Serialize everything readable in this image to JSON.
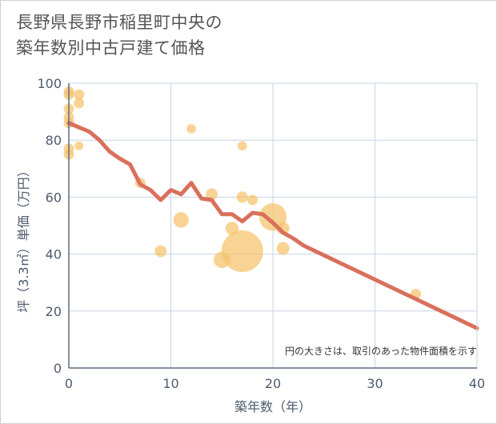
{
  "title_lines": [
    "長野県長野市稲里町中央の",
    "築年数別中古戸建て価格"
  ],
  "chart_data": {
    "type": "scatter",
    "title": "長野県長野市稲里町中央の築年数別中古戸建て価格",
    "xlabel": "築年数（年）",
    "ylabel": "坪（3.3㎡）単価（万円）",
    "xlim": [
      0,
      40
    ],
    "ylim": [
      0,
      100
    ],
    "xticks": [
      "0",
      "10",
      "20",
      "30",
      "40"
    ],
    "yticks": [
      "0",
      "20",
      "40",
      "60",
      "80",
      "100"
    ],
    "grid": true,
    "note": "円の大きさは、取引のあった物件面積を示す",
    "colors": {
      "bubble": "#f5c26b",
      "line": "#d9705c",
      "grid": "#c9d4e3",
      "axis": "#5b6b80"
    },
    "bubbles": [
      {
        "x": 0,
        "y": 97,
        "size": 1
      },
      {
        "x": 0,
        "y": 96,
        "size": 1
      },
      {
        "x": 0,
        "y": 91,
        "size": 1
      },
      {
        "x": 0,
        "y": 88,
        "size": 1
      },
      {
        "x": 0,
        "y": 86,
        "size": 1
      },
      {
        "x": 0,
        "y": 77,
        "size": 1
      },
      {
        "x": 0,
        "y": 75,
        "size": 1
      },
      {
        "x": 1,
        "y": 96,
        "size": 1
      },
      {
        "x": 1,
        "y": 93,
        "size": 1
      },
      {
        "x": 1,
        "y": 78,
        "size": 0.7
      },
      {
        "x": 7,
        "y": 65,
        "size": 1
      },
      {
        "x": 9,
        "y": 41,
        "size": 1.3
      },
      {
        "x": 11,
        "y": 52,
        "size": 2.2
      },
      {
        "x": 12,
        "y": 84,
        "size": 0.8
      },
      {
        "x": 14,
        "y": 61,
        "size": 1.3
      },
      {
        "x": 15,
        "y": 38,
        "size": 2.5
      },
      {
        "x": 16,
        "y": 49,
        "size": 1.6
      },
      {
        "x": 17,
        "y": 78,
        "size": 0.8
      },
      {
        "x": 17,
        "y": 60,
        "size": 1.2
      },
      {
        "x": 17,
        "y": 41,
        "size": 16
      },
      {
        "x": 18,
        "y": 59,
        "size": 1
      },
      {
        "x": 20,
        "y": 53,
        "size": 7
      },
      {
        "x": 21,
        "y": 49,
        "size": 1.5
      },
      {
        "x": 21,
        "y": 42,
        "size": 1.5
      },
      {
        "x": 34,
        "y": 26,
        "size": 1
      }
    ],
    "trend": {
      "x": [
        0,
        1,
        2,
        3,
        4,
        5,
        6,
        7,
        8,
        9,
        10,
        11,
        12,
        13,
        14,
        15,
        16,
        17,
        18,
        19,
        20,
        21,
        22,
        23,
        40
      ],
      "y": [
        86,
        84.5,
        83,
        80,
        76,
        73.5,
        71.5,
        64.5,
        62.5,
        59,
        62.5,
        61,
        65,
        59.5,
        59,
        54,
        54,
        51.5,
        54.5,
        54,
        51,
        47.5,
        45.5,
        43,
        14
      ]
    }
  }
}
